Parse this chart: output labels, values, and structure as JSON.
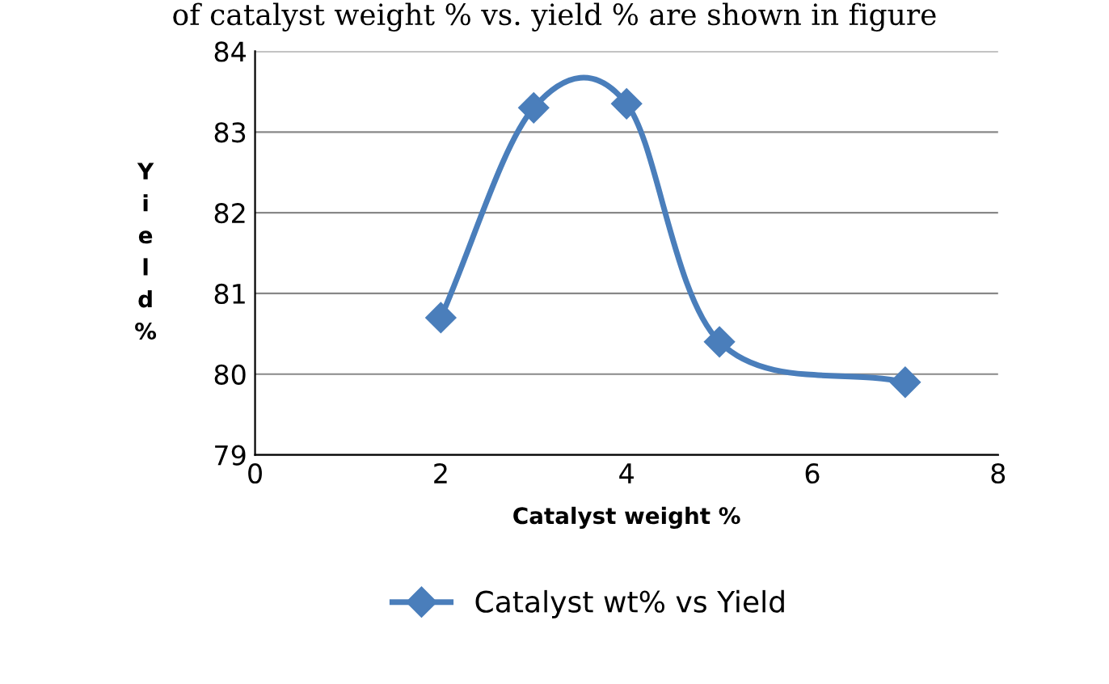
{
  "chart_data": {
    "type": "line",
    "xlabel": "Catalyst weight %",
    "ylabel": "Yield %",
    "annotations": [
      "of catalyst weight % vs. yield % are shown in figure"
    ],
    "x": [
      2,
      3,
      4,
      5,
      7
    ],
    "series": [
      {
        "name": "Catalyst wt% vs Yield",
        "color": "#4a7ebb",
        "values": [
          80.7,
          83.3,
          83.35,
          80.4,
          79.9
        ]
      }
    ],
    "xlim": [
      0,
      8
    ],
    "xticks": [
      0,
      2,
      4,
      6,
      8
    ],
    "ylim": [
      79,
      84
    ],
    "yticks": [
      79,
      80,
      81,
      82,
      83,
      84
    ],
    "grid": "y",
    "legend": "bottom",
    "marker": "diamond",
    "line_style": "solid"
  }
}
